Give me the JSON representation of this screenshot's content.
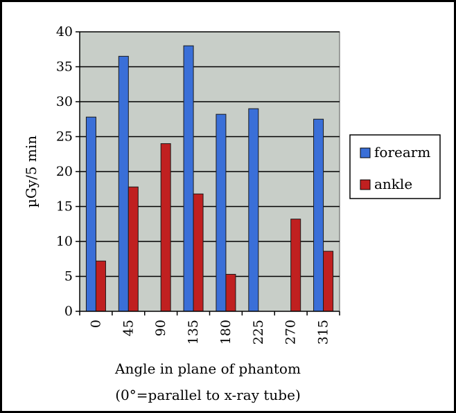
{
  "chart_data": {
    "type": "bar",
    "categories": [
      "0",
      "45",
      "90",
      "135",
      "180",
      "225",
      "270",
      "315"
    ],
    "series": [
      {
        "name": "forearm",
        "color": "#3a6fd8",
        "values": [
          27.8,
          36.5,
          null,
          38.0,
          28.2,
          29.0,
          null,
          27.5
        ]
      },
      {
        "name": "ankle",
        "color": "#c02020",
        "values": [
          7.2,
          17.8,
          24.0,
          16.8,
          5.3,
          null,
          13.2,
          8.6
        ]
      }
    ],
    "ylim": [
      0,
      40
    ],
    "yticks": [
      "0",
      "5",
      "10",
      "15",
      "20",
      "25",
      "30",
      "35",
      "40"
    ],
    "ylabel": "µGy/5 min",
    "xlabel_line1": "Angle in plane of phantom",
    "xlabel_line2": "(0°=parallel to x-ray tube)",
    "grid": true,
    "legend_position": "right",
    "plot_background": "#c8cec8"
  }
}
